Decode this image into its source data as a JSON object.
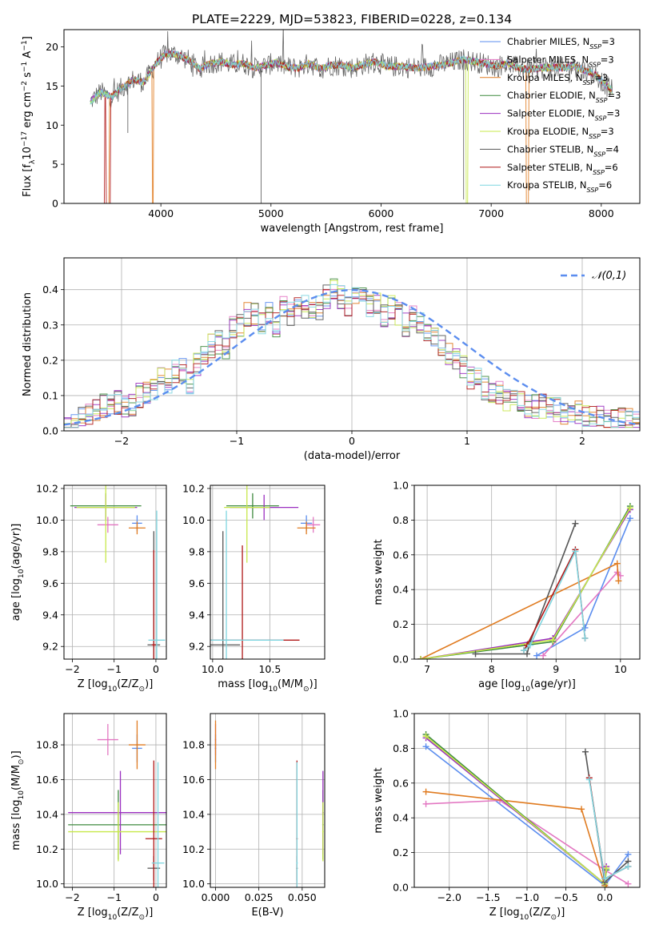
{
  "figure": {
    "title": "PLATE=2229, MJD=53823, FIBERID=0228, z=0.134"
  },
  "series_styles": [
    {
      "name": "Chabrier MILES, N$_{SSP}$=3",
      "label_main": "Chabrier MILES, N",
      "label_sub": "SSP",
      "label_end": "=3",
      "color": "#5b8def"
    },
    {
      "name": "Salpeter MILES, N$_{SSP}$=3",
      "label_main": "Salpeter MILES, N",
      "label_sub": "SSP",
      "label_end": "=3",
      "color": "#e377c2"
    },
    {
      "name": "Kroupa MILES, N$_{SSP}$=3",
      "label_main": "Kroupa MILES, N",
      "label_sub": "SSP",
      "label_end": "=3",
      "color": "#e07b20"
    },
    {
      "name": "Chabrier ELODIE, N$_{SSP}$=3",
      "label_main": "Chabrier ELODIE, N",
      "label_sub": "SSP",
      "label_end": "=3",
      "color": "#3f8a3f"
    },
    {
      "name": "Salpeter ELODIE, N$_{SSP}$=3",
      "label_main": "Salpeter ELODIE, N",
      "label_sub": "SSP",
      "label_end": "=3",
      "color": "#9b30c0"
    },
    {
      "name": "Kroupa ELODIE, N$_{SSP}$=3",
      "label_main": "Kroupa ELODIE, N",
      "label_sub": "SSP",
      "label_end": "=3",
      "color": "#c7e84a"
    },
    {
      "name": "Chabrier STELIB, N$_{SSP}$=4",
      "label_main": "Chabrier STELIB, N",
      "label_sub": "SSP",
      "label_end": "=4",
      "color": "#555555"
    },
    {
      "name": "Salpeter STELIB, N$_{SSP}$=6",
      "label_main": "Salpeter STELIB, N",
      "label_sub": "SSP",
      "label_end": "=6",
      "color": "#b01818"
    },
    {
      "name": "Kroupa STELIB, N$_{SSP}$=6",
      "label_main": "Kroupa STELIB, N",
      "label_sub": "SSP",
      "label_end": "=6",
      "color": "#7fd6e0"
    }
  ],
  "chart_data": [
    {
      "id": "spectrum",
      "type": "line",
      "title": "PLATE=2229, MJD=53823, FIBERID=0228, z=0.134",
      "xlabel": "wavelength [Angstrom, rest frame]",
      "ylabel": "Flux [f$_\\lambda$10$^{-17}$ erg cm$^{-2}$ s$^{-1}$ A$^{-1}$]",
      "xlim": [
        3120,
        8350
      ],
      "ylim": [
        0,
        22.2
      ],
      "xticks": [
        4000,
        5000,
        6000,
        7000,
        8000
      ],
      "yticks": [
        0,
        5,
        10,
        15,
        20
      ],
      "grid": false,
      "legend_position": "top-right",
      "data_x": [
        3360,
        3450,
        3550,
        3650,
        3750,
        3850,
        3950,
        4050,
        4150,
        4250,
        4350,
        4450,
        4550,
        4650,
        4750,
        4850,
        4950,
        5050,
        5150,
        5250,
        5350,
        5450,
        5550,
        5650,
        5750,
        5850,
        5950,
        6050,
        6150,
        6250,
        6350,
        6450,
        6550,
        6650,
        6750,
        6850,
        6950,
        7050,
        7150,
        7250,
        7350,
        7450,
        7550,
        7650,
        7750,
        7850,
        7950,
        8050,
        8100
      ],
      "data_y": [
        13.0,
        14.2,
        13.6,
        14.8,
        15.8,
        15.5,
        17.8,
        19.2,
        19.0,
        18.3,
        17.2,
        17.9,
        18.1,
        17.7,
        17.9,
        17.3,
        17.6,
        18.0,
        17.4,
        17.3,
        17.9,
        17.2,
        17.7,
        17.6,
        17.3,
        17.8,
        18.1,
        17.5,
        17.5,
        17.4,
        17.3,
        17.5,
        17.7,
        18.0,
        18.4,
        18.1,
        17.8,
        17.5,
        17.9,
        17.3,
        17.1,
        17.3,
        17.4,
        17.3,
        17.6,
        17.0,
        16.4,
        15.0,
        14.4
      ],
      "sharp_drops": [
        {
          "series": "Kroupa MILES, N$_{SSP}$=3",
          "x": [
            3480,
            3530
          ],
          "note": "edge"
        },
        {
          "series": "Salpeter STELIB, N$_{SSP}$=6",
          "x": [
            3500,
            3540
          ],
          "note": "edge"
        },
        {
          "series": "Kroupa MILES, N$_{SSP}$=3",
          "x": [
            3920,
            3935
          ]
        },
        {
          "series": "Kroupa ELODIE, N$_{SSP}$=3",
          "x": [
            6770,
            6790
          ]
        },
        {
          "series": "Kroupa MILES, N$_{SSP}$=3",
          "x": [
            7320,
            7340
          ]
        }
      ]
    },
    {
      "id": "residuals",
      "type": "line",
      "xlabel": "(data-model)/error",
      "ylabel": "Normed distribution",
      "xlim": [
        -2.5,
        2.5
      ],
      "ylim": [
        0,
        0.49
      ],
      "xticks": [
        -2,
        -1,
        0,
        1,
        2
      ],
      "yticks": [
        0.0,
        0.1,
        0.2,
        0.3,
        0.4
      ],
      "grid": true,
      "legend_position": "top-right",
      "reference_curve": {
        "name": "$\\mathcal{N}(0,1)$",
        "style": "dashed",
        "color": "#5b8def"
      },
      "bin_width": 0.1,
      "bins_start": -2.5,
      "histogram_mean": [
        0.03,
        0.03,
        0.04,
        0.05,
        0.06,
        0.07,
        0.07,
        0.08,
        0.07,
        0.07,
        0.1,
        0.11,
        0.12,
        0.15,
        0.14,
        0.17,
        0.17,
        0.14,
        0.19,
        0.22,
        0.24,
        0.25,
        0.23,
        0.29,
        0.3,
        0.33,
        0.33,
        0.3,
        0.33,
        0.3,
        0.35,
        0.33,
        0.36,
        0.35,
        0.33,
        0.35,
        0.38,
        0.4,
        0.38,
        0.36,
        0.39,
        0.38,
        0.35,
        0.36,
        0.33,
        0.35,
        0.33,
        0.3,
        0.32,
        0.3,
        0.28,
        0.27,
        0.24,
        0.22,
        0.2,
        0.18,
        0.15,
        0.15,
        0.12,
        0.11,
        0.11,
        0.09,
        0.09,
        0.08,
        0.07,
        0.07,
        0.07,
        0.06,
        0.06,
        0.05,
        0.05,
        0.05,
        0.04,
        0.04,
        0.04,
        0.03,
        0.03,
        0.03,
        0.03,
        0.03
      ]
    },
    {
      "id": "age_vs_Z",
      "type": "scatter",
      "xlabel": "Z [log$_{10}$(Z/Z$_\\odot$)]",
      "ylabel": "age  [log$_{10}$(age/yr)]",
      "xlim": [
        -2.2,
        0.25
      ],
      "ylim": [
        9.12,
        10.22
      ],
      "xticks": [
        -2,
        -1,
        0
      ],
      "yticks": [
        9.2,
        9.4,
        9.6,
        9.8,
        10.0,
        10.2
      ],
      "grid": true,
      "points": [
        {
          "series": "Chabrier MILES, N$_{SSP}$=3",
          "x": -0.45,
          "y": 9.98,
          "xerr": 0.12,
          "yerr": 0.05
        },
        {
          "series": "Salpeter MILES, N$_{SSP}$=3",
          "x": -1.15,
          "y": 9.97,
          "xerr": 0.25,
          "yerr": 0.05
        },
        {
          "series": "Kroupa MILES, N$_{SSP}$=3",
          "x": -0.45,
          "y": 9.95,
          "xerr": 0.2,
          "yerr": 0.04
        },
        {
          "series": "Chabrier ELODIE, N$_{SSP}$=3",
          "x": -1.2,
          "y": 10.09,
          "xerr": 0.85,
          "yerr": 0.08
        },
        {
          "series": "Salpeter ELODIE, N$_{SSP}$=3",
          "x": -1.2,
          "y": 10.08,
          "xerr": 0.75,
          "yerr": 0.08
        },
        {
          "series": "Kroupa ELODIE, N$_{SSP}$=3",
          "x": -1.2,
          "y": 10.08,
          "xerr": 0.7,
          "yerr": 0.35
        },
        {
          "series": "Chabrier STELIB, N$_{SSP}$=4",
          "x": -0.05,
          "y": 9.21,
          "xerr": 0.15,
          "yerr": 0.72
        },
        {
          "series": "Salpeter STELIB, N$_{SSP}$=6",
          "x": -0.05,
          "y": 9.21,
          "xerr": 0.05,
          "yerr": 0.6
        },
        {
          "series": "Kroupa STELIB, N$_{SSP}$=6",
          "x": 0.02,
          "y": 9.24,
          "xerr": 0.2,
          "yerr": 0.82
        }
      ]
    },
    {
      "id": "age_vs_mass",
      "type": "scatter",
      "xlabel": "mass [log$_{10}$(M/M$_\\odot$)]",
      "ylabel": "",
      "xlim": [
        9.98,
        10.98
      ],
      "ylim": [
        9.12,
        10.22
      ],
      "xticks": [
        10.0,
        10.5
      ],
      "yticks": [
        9.2,
        9.4,
        9.6,
        9.8,
        10.0,
        10.2
      ],
      "grid": true,
      "points": [
        {
          "series": "Chabrier MILES, N$_{SSP}$=3",
          "x": 10.82,
          "y": 9.98,
          "xerr": 0.05,
          "yerr": 0.05
        },
        {
          "series": "Salpeter MILES, N$_{SSP}$=3",
          "x": 10.88,
          "y": 9.97,
          "xerr": 0.06,
          "yerr": 0.05
        },
        {
          "series": "Kroupa MILES, N$_{SSP}$=3",
          "x": 10.82,
          "y": 9.95,
          "xerr": 0.08,
          "yerr": 0.04
        },
        {
          "series": "Chabrier ELODIE, N$_{SSP}$=3",
          "x": 10.35,
          "y": 10.09,
          "xerr": 0.23,
          "yerr": 0.08
        },
        {
          "series": "Salpeter ELODIE, N$_{SSP}$=3",
          "x": 10.45,
          "y": 10.08,
          "xerr": 0.3,
          "yerr": 0.08
        },
        {
          "series": "Kroupa ELODIE, N$_{SSP}$=3",
          "x": 10.3,
          "y": 10.08,
          "xerr": 0.2,
          "yerr": 0.35
        },
        {
          "series": "Chabrier STELIB, N$_{SSP}$=4",
          "x": 10.09,
          "y": 9.21,
          "xerr": 0.15,
          "yerr": 0.72
        },
        {
          "series": "Salpeter STELIB, N$_{SSP}$=6",
          "x": 10.26,
          "y": 9.24,
          "xerr": 0.5,
          "yerr": 0.6
        },
        {
          "series": "Kroupa STELIB, N$_{SSP}$=6",
          "x": 10.12,
          "y": 9.24,
          "xerr": 0.5,
          "yerr": 0.82
        }
      ]
    },
    {
      "id": "weight_vs_age",
      "type": "line",
      "xlabel": "age  [log$_{10}$(age/yr)]",
      "ylabel": "mass weight",
      "xlim": [
        6.8,
        10.3
      ],
      "ylim": [
        0,
        1.0
      ],
      "xticks": [
        7,
        8,
        9,
        10
      ],
      "yticks": [
        0.0,
        0.2,
        0.4,
        0.6,
        0.8,
        1.0
      ],
      "grid": true,
      "series": [
        {
          "name": "Chabrier MILES, N$_{SSP}$=3",
          "x": [
            8.7,
            9.45,
            10.15
          ],
          "y": [
            0.02,
            0.18,
            0.81
          ]
        },
        {
          "name": "Salpeter MILES, N$_{SSP}$=3",
          "x": [
            8.8,
            9.95,
            10.0
          ],
          "y": [
            0.02,
            0.5,
            0.48
          ]
        },
        {
          "name": "Kroupa MILES, N$_{SSP}$=3",
          "x": [
            6.9,
            9.95,
            9.97
          ],
          "y": [
            0.0,
            0.55,
            0.45
          ]
        },
        {
          "name": "Chabrier ELODIE, N$_{SSP}$=3",
          "x": [
            6.9,
            8.95,
            10.15
          ],
          "y": [
            0.0,
            0.1,
            0.88
          ]
        },
        {
          "name": "Salpeter ELODIE, N$_{SSP}$=3",
          "x": [
            6.9,
            8.95,
            10.15
          ],
          "y": [
            0.0,
            0.12,
            0.86
          ]
        },
        {
          "name": "Kroupa ELODIE, N$_{SSP}$=3",
          "x": [
            6.9,
            8.95,
            10.15
          ],
          "y": [
            0.0,
            0.11,
            0.87
          ]
        },
        {
          "name": "Chabrier STELIB, N$_{SSP}$=4",
          "x": [
            7.75,
            8.55,
            8.6,
            9.3
          ],
          "y": [
            0.03,
            0.03,
            0.1,
            0.78
          ]
        },
        {
          "name": "Salpeter STELIB, N$_{SSP}$=6",
          "x": [
            8.5,
            8.55,
            9.3,
            9.45
          ],
          "y": [
            0.05,
            0.08,
            0.63,
            0.12
          ]
        },
        {
          "name": "Kroupa STELIB, N$_{SSP}$=6",
          "x": [
            8.5,
            8.6,
            9.3,
            9.45
          ],
          "y": [
            0.05,
            0.08,
            0.62,
            0.12
          ]
        }
      ]
    },
    {
      "id": "mass_vs_Z",
      "type": "scatter",
      "xlabel": "Z [log$_{10}$(Z/Z$_\\odot$)]",
      "ylabel": "mass [log$_{10}$(M/M$_\\odot$)]",
      "xlim": [
        -2.2,
        0.25
      ],
      "ylim": [
        9.98,
        10.98
      ],
      "xticks": [
        -2,
        -1,
        0
      ],
      "yticks": [
        10.0,
        10.2,
        10.4,
        10.6,
        10.8
      ],
      "grid": true,
      "points": [
        {
          "series": "Chabrier MILES, N$_{SSP}$=3",
          "x": -0.45,
          "y": 10.78,
          "xerr": 0.12,
          "yerr": 0.08
        },
        {
          "series": "Salpeter MILES, N$_{SSP}$=3",
          "x": -1.15,
          "y": 10.83,
          "xerr": 0.25,
          "yerr": 0.09
        },
        {
          "series": "Kroupa MILES, N$_{SSP}$=3",
          "x": -0.45,
          "y": 10.8,
          "xerr": 0.2,
          "yerr": 0.14
        },
        {
          "series": "Chabrier ELODIE, N$_{SSP}$=3",
          "x": -0.9,
          "y": 10.34,
          "xerr": 1.2,
          "yerr": 0.2
        },
        {
          "series": "Salpeter ELODIE, N$_{SSP}$=3",
          "x": -0.85,
          "y": 10.41,
          "xerr": 1.25,
          "yerr": 0.24
        },
        {
          "series": "Kroupa ELODIE, N$_{SSP}$=3",
          "x": -0.9,
          "y": 10.3,
          "xerr": 1.2,
          "yerr": 0.17
        },
        {
          "series": "Chabrier STELIB, N$_{SSP}$=4",
          "x": -0.05,
          "y": 10.09,
          "xerr": 0.15,
          "yerr": 0.07
        },
        {
          "series": "Salpeter STELIB, N$_{SSP}$=6",
          "x": -0.05,
          "y": 10.26,
          "xerr": 0.2,
          "yerr": 0.45
        },
        {
          "series": "Kroupa STELIB, N$_{SSP}$=6",
          "x": 0.05,
          "y": 10.12,
          "xerr": 0.15,
          "yerr": 0.58
        }
      ]
    },
    {
      "id": "mass_vs_EBV",
      "type": "scatter",
      "xlabel": "E(B-V)",
      "ylabel": "",
      "xlim": [
        -0.003,
        0.063
      ],
      "ylim": [
        9.98,
        10.98
      ],
      "xticks": [
        0.0,
        0.025,
        0.05
      ],
      "xticklabels": [
        "0.000",
        "0.025",
        "0.050"
      ],
      "yticks": [
        10.0,
        10.2,
        10.4,
        10.6,
        10.8
      ],
      "grid": true,
      "points": [
        {
          "series": "Chabrier MILES, N$_{SSP}$=3",
          "x": 0.0,
          "y": 10.78,
          "xerr": 0.0,
          "yerr": 0.08
        },
        {
          "series": "Salpeter MILES, N$_{SSP}$=3",
          "x": 0.0,
          "y": 10.83,
          "xerr": 0.0,
          "yerr": 0.09
        },
        {
          "series": "Kroupa MILES, N$_{SSP}$=3",
          "x": 0.0,
          "y": 10.8,
          "xerr": 0.0,
          "yerr": 0.14
        },
        {
          "series": "Chabrier ELODIE, N$_{SSP}$=3",
          "x": 0.062,
          "y": 10.34,
          "xerr": 0.0,
          "yerr": 0.2
        },
        {
          "series": "Salpeter ELODIE, N$_{SSP}$=3",
          "x": 0.062,
          "y": 10.41,
          "xerr": 0.0,
          "yerr": 0.24
        },
        {
          "series": "Kroupa ELODIE, N$_{SSP}$=3",
          "x": 0.062,
          "y": 10.3,
          "xerr": 0.0,
          "yerr": 0.17
        },
        {
          "series": "Chabrier STELIB, N$_{SSP}$=4",
          "x": 0.047,
          "y": 10.09,
          "xerr": 0.0,
          "yerr": 0.07
        },
        {
          "series": "Salpeter STELIB, N$_{SSP}$=6",
          "x": 0.047,
          "y": 10.26,
          "xerr": 0.0,
          "yerr": 0.45
        },
        {
          "series": "Kroupa STELIB, N$_{SSP}$=6",
          "x": 0.047,
          "y": 10.12,
          "xerr": 0.0,
          "yerr": 0.58
        }
      ]
    },
    {
      "id": "weight_vs_Z",
      "type": "line",
      "xlabel": "Z [log$_{10}$(Z/Z$_\\odot$)]",
      "ylabel": "mass weight",
      "xlim": [
        -2.45,
        0.45
      ],
      "ylim": [
        0,
        1.0
      ],
      "xticks": [
        -2.0,
        -1.5,
        -1.0,
        -0.5,
        0.0
      ],
      "xticklabels": [
        "−2.0",
        "−1.5",
        "−1.0",
        "−0.5",
        "0.0"
      ],
      "yticks": [
        0.0,
        0.2,
        0.4,
        0.6,
        0.8,
        1.0
      ],
      "grid": true,
      "series": [
        {
          "name": "Chabrier MILES, N$_{SSP}$=3",
          "x": [
            -2.3,
            0.0,
            0.3
          ],
          "y": [
            0.81,
            0.01,
            0.19
          ]
        },
        {
          "name": "Salpeter MILES, N$_{SSP}$=3",
          "x": [
            -2.3,
            -1.35,
            0.0,
            0.3
          ],
          "y": [
            0.48,
            0.5,
            0.1,
            0.02
          ]
        },
        {
          "name": "Kroupa MILES, N$_{SSP}$=3",
          "x": [
            -2.3,
            -0.3,
            0.0,
            0.02
          ],
          "y": [
            0.55,
            0.45,
            0.01,
            0.0
          ]
        },
        {
          "name": "Chabrier ELODIE, N$_{SSP}$=3",
          "x": [
            -2.3,
            0.0,
            0.02
          ],
          "y": [
            0.88,
            0.02,
            0.1
          ]
        },
        {
          "name": "Salpeter ELODIE, N$_{SSP}$=3",
          "x": [
            -2.3,
            0.0,
            0.02
          ],
          "y": [
            0.86,
            0.02,
            0.12
          ]
        },
        {
          "name": "Kroupa ELODIE, N$_{SSP}$=3",
          "x": [
            -2.3,
            0.0,
            0.02
          ],
          "y": [
            0.87,
            0.02,
            0.11
          ]
        },
        {
          "name": "Chabrier STELIB, N$_{SSP}$=4",
          "x": [
            -0.25,
            0.0,
            0.3
          ],
          "y": [
            0.78,
            0.03,
            0.15
          ]
        },
        {
          "name": "Salpeter STELIB, N$_{SSP}$=6",
          "x": [
            -0.2,
            0.0,
            0.3
          ],
          "y": [
            0.63,
            0.05,
            0.12
          ]
        },
        {
          "name": "Kroupa STELIB, N$_{SSP}$=6",
          "x": [
            -0.2,
            0.0,
            0.3
          ],
          "y": [
            0.62,
            0.05,
            0.12
          ]
        }
      ]
    }
  ]
}
